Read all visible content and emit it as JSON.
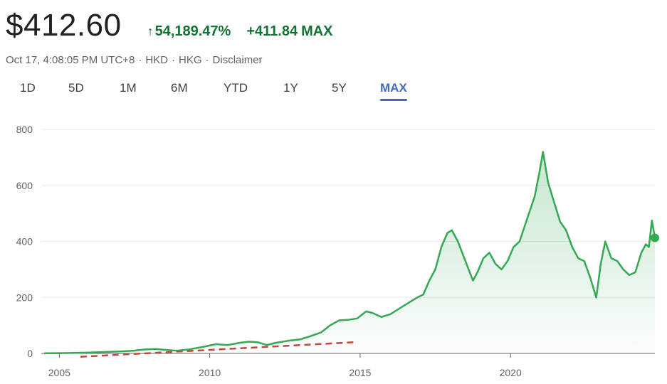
{
  "quote": {
    "price": "$412.60",
    "change_icon": "arrow-up",
    "change_percent": "54,189.47%",
    "change_abs": "+411.84",
    "period": "MAX",
    "timestamp": "Oct 17, 4:08:05 PM UTC+8",
    "currency": "HKD",
    "exchange": "HKG",
    "disclaimer": "Disclaimer",
    "meta_separator": "·"
  },
  "ranges": [
    "1D",
    "5D",
    "1M",
    "6M",
    "YTD",
    "1Y",
    "5Y",
    "MAX"
  ],
  "active_range": "MAX",
  "colors": {
    "positive": "#137333",
    "line": "#34a853",
    "active_tab": "#4169c4",
    "reference_line": "#c5443b",
    "grid": "#e8eaed"
  },
  "chart_data": {
    "type": "area",
    "x_unit": "year",
    "y_ticks": [
      0,
      200,
      400,
      600,
      800
    ],
    "x_ticks": [
      2005,
      2010,
      2015,
      2020
    ],
    "ylim": [
      0,
      800
    ],
    "xlim": [
      2004.4,
      2024.8
    ],
    "grid": true,
    "series": [
      {
        "x": [
          2004.5,
          2005.0,
          2005.5,
          2006.0,
          2006.5,
          2007.0,
          2007.5,
          2007.8,
          2008.2,
          2008.5,
          2008.9,
          2009.3,
          2009.8,
          2010.2,
          2010.6,
          2011.0,
          2011.3,
          2011.6,
          2011.9,
          2012.2,
          2012.6,
          2013.0,
          2013.3,
          2013.7,
          2014.0,
          2014.3,
          2014.6,
          2014.9,
          2015.2,
          2015.4,
          2015.7,
          2016.0,
          2016.3,
          2016.6,
          2016.9,
          2017.1,
          2017.3,
          2017.5,
          2017.7,
          2017.9,
          2018.05,
          2018.25,
          2018.5,
          2018.75,
          2018.9,
          2019.1,
          2019.3,
          2019.5,
          2019.7,
          2019.9,
          2020.1,
          2020.3,
          2020.55,
          2020.8,
          2020.95,
          2021.08,
          2021.25,
          2021.45,
          2021.65,
          2021.85,
          2022.05,
          2022.25,
          2022.45,
          2022.65,
          2022.85,
          2023.0,
          2023.15,
          2023.35,
          2023.55,
          2023.75,
          2023.95,
          2024.15,
          2024.35,
          2024.5,
          2024.6,
          2024.7,
          2024.8
        ],
        "values": [
          0.8,
          1,
          2,
          3,
          5,
          7,
          10,
          14,
          16,
          13,
          10,
          14,
          24,
          33,
          30,
          38,
          42,
          40,
          30,
          38,
          45,
          50,
          60,
          75,
          100,
          118,
          120,
          125,
          150,
          145,
          130,
          140,
          160,
          180,
          200,
          210,
          260,
          300,
          380,
          430,
          440,
          400,
          330,
          260,
          290,
          340,
          360,
          320,
          300,
          330,
          380,
          400,
          480,
          560,
          640,
          720,
          610,
          540,
          470,
          440,
          380,
          340,
          330,
          270,
          200,
          320,
          400,
          340,
          330,
          300,
          280,
          290,
          360,
          390,
          380,
          475,
          412.6
        ]
      }
    ],
    "reference_line": {
      "style": "dashed",
      "x": [
        2005.7,
        2014.8
      ],
      "values": [
        -12,
        40
      ]
    },
    "last_point": {
      "x": 2024.8,
      "value": 412.6
    }
  }
}
